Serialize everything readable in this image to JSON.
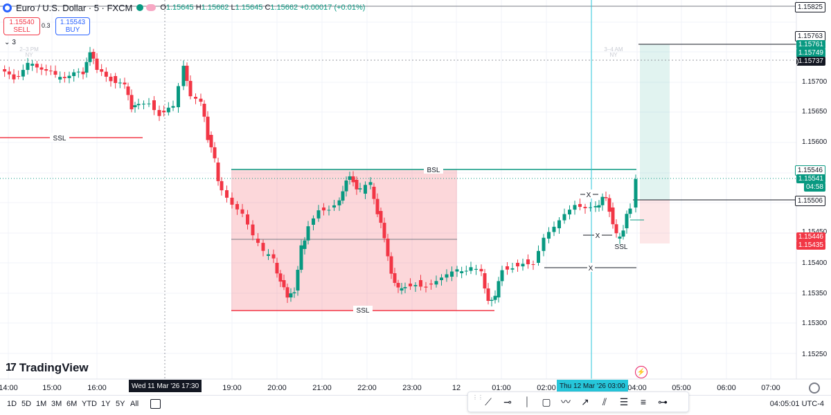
{
  "header": {
    "symbol": "Euro / U.S. Dollar · 5 · FXCM",
    "ohlc": {
      "o_label": "O",
      "o": "1.15645",
      "h_label": "H",
      "h": "1.15662",
      "l_label": "L",
      "l": "1.15645",
      "c_label": "C",
      "c": "1.15662",
      "change": "+0.00017 (+0.01%)"
    }
  },
  "trade": {
    "sell_price": "1.15540",
    "sell_label": "SELL",
    "spread": "0.3",
    "buy_price": "1.15543",
    "buy_label": "BUY"
  },
  "indicators_label": "3",
  "brand": "TradingView",
  "session_labels": [
    {
      "text": "2–3 PM"
    },
    {
      "text": "NY"
    },
    {
      "text": "3–4 AM"
    },
    {
      "text": "NY"
    }
  ],
  "zones": {
    "bsl": "BSL",
    "ssl_left": "SSL",
    "ssl_mid": "SSL",
    "ssl_right": "SSL",
    "x1": "X",
    "x2": "X",
    "x3": "X"
  },
  "price_axis": {
    "ticks": [
      "1.15700",
      "1.15650",
      "1.15600",
      "1.15450",
      "1.15400",
      "1.15350",
      "1.15300",
      "1.15250"
    ],
    "labels": [
      {
        "text": "1.15825",
        "bg": "#ffffff",
        "fg": "#131722",
        "border": "#131722"
      },
      {
        "text": "1.15763",
        "bg": "#ffffff",
        "fg": "#131722",
        "border": "#131722"
      },
      {
        "text": "1.15761",
        "bg": "#089981",
        "fg": "#ffffff"
      },
      {
        "text": "1.15749",
        "bg": "#089981",
        "fg": "#ffffff"
      },
      {
        "text": "1.15737",
        "bg": "#131722",
        "fg": "#ffffff"
      },
      {
        "text": "1.15546",
        "bg": "#ffffff",
        "fg": "#131722",
        "border": "#089981"
      },
      {
        "text": "1.15541",
        "bg": "#089981",
        "fg": "#ffffff"
      },
      {
        "text": "04:58",
        "bg": "#089981",
        "fg": "#ffffff"
      },
      {
        "text": "1.15506",
        "bg": "#ffffff",
        "fg": "#131722",
        "border": "#131722"
      },
      {
        "text": "1.15446",
        "bg": "#f23645",
        "fg": "#ffffff"
      },
      {
        "text": "1.15435",
        "bg": "#f23645",
        "fg": "#ffffff"
      }
    ]
  },
  "time_axis": {
    "ticks": [
      "14:00",
      "15:00",
      "16:00",
      "19:00",
      "20:00",
      "21:00",
      "22:00",
      "23:00",
      "12",
      "01:00",
      "02:00",
      "04:00",
      "05:00",
      "06:00",
      "07:00"
    ],
    "highlight_left": "Wed 11 Mar '26   17:30",
    "highlight_right": "Thu 12 Mar '26   03:00"
  },
  "ranges": [
    "1D",
    "5D",
    "1M",
    "3M",
    "6M",
    "YTD",
    "1Y",
    "5Y",
    "All"
  ],
  "clock": "04:05:01 UTC-4",
  "colors": {
    "up": "#089981",
    "down": "#f23645",
    "zone_red": "rgba(242,54,69,0.2)",
    "zone_green": "rgba(8,153,129,0.12)",
    "crosshair": "#26c6da"
  }
}
